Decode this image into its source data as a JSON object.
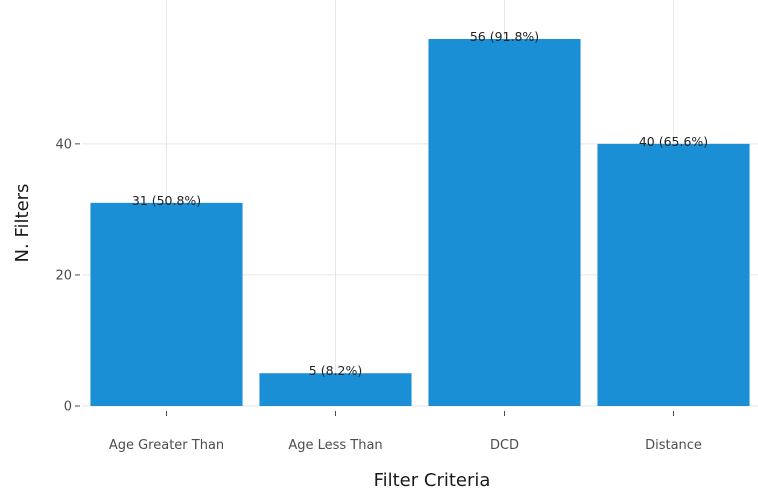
{
  "colors": {
    "bar": "#1b8fd6",
    "grid": "#e6e6e6",
    "tick": "#4d4d4d"
  },
  "chart_data": {
    "type": "bar",
    "categories": [
      "Age Greater Than",
      "Age Less Than",
      "DCD",
      "Distance"
    ],
    "values": [
      31,
      5,
      56,
      40
    ],
    "labels": [
      "31 (50.8%)",
      "5 (8.2%)",
      "56 (91.8%)",
      "40 (65.6%)"
    ],
    "y_ticks": [
      0,
      20,
      40
    ],
    "y_tick_labels": [
      "0",
      "20",
      "40"
    ],
    "title": "",
    "xlabel": "Filter Criteria",
    "ylabel": "N. Filters",
    "ylim": [
      0,
      56
    ],
    "grid": true,
    "legend": "none"
  }
}
